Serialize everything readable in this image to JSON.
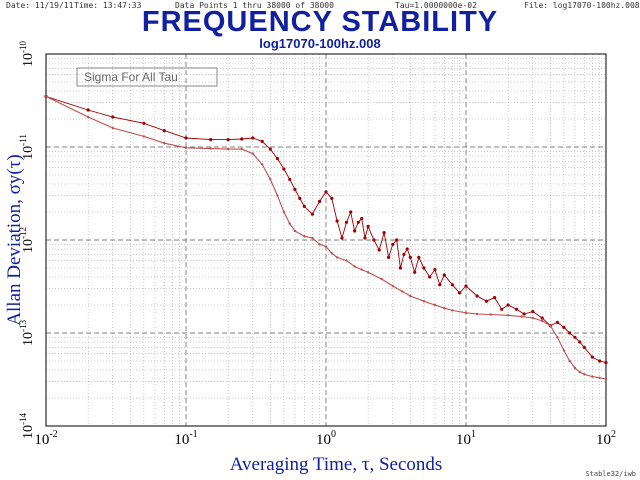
{
  "header": {
    "date_label": "Date: 11/19/11",
    "time_label": "Time: 13:47:33",
    "points_label": "Data Points 1 thru 38000 of 38000",
    "tau_label": "Tau=1.0000000e-02",
    "file_label": "File: log17070-100hz.008"
  },
  "footer": {
    "credit": "Stable32/iwb"
  },
  "colors": {
    "title": "#1020a0",
    "series_upper": "#a00000",
    "series_lower": "#c05050",
    "grid": "#9a9a9a"
  },
  "chart_data": {
    "type": "line",
    "title": "FREQUENCY STABILITY",
    "subtitle": "log17070-100hz.008",
    "xlabel": "Averaging Time, τ, Seconds",
    "ylabel": "Allan Deviation, σy(τ)",
    "x_scale": "log",
    "y_scale": "log",
    "xlim": [
      0.01,
      100
    ],
    "ylim": [
      1e-14,
      1e-10
    ],
    "grid": true,
    "annotation": "Sigma For All Tau",
    "x_ticks": [
      {
        "value": 0.01,
        "base": "10",
        "exp": "-2"
      },
      {
        "value": 0.1,
        "base": "10",
        "exp": "-1"
      },
      {
        "value": 1,
        "base": "10",
        "exp": "0"
      },
      {
        "value": 10,
        "base": "10",
        "exp": "1"
      },
      {
        "value": 100,
        "base": "10",
        "exp": "2"
      }
    ],
    "y_ticks": [
      {
        "value": 1e-14,
        "base": "10",
        "exp": "-14"
      },
      {
        "value": 1e-13,
        "base": "10",
        "exp": "-13"
      },
      {
        "value": 1e-12,
        "base": "10",
        "exp": "-12"
      },
      {
        "value": 1e-11,
        "base": "10",
        "exp": "-11"
      },
      {
        "value": 1e-10,
        "base": "10",
        "exp": "-10"
      }
    ],
    "series": [
      {
        "style": "dotted-markers",
        "x": [
          0.01,
          0.02,
          0.03,
          0.05,
          0.07,
          0.1,
          0.15,
          0.2,
          0.25,
          0.3,
          0.35,
          0.4,
          0.45,
          0.5,
          0.55,
          0.6,
          0.65,
          0.7,
          0.8,
          0.9,
          1,
          1.1,
          1.2,
          1.3,
          1.4,
          1.5,
          1.6,
          1.7,
          1.8,
          1.9,
          2,
          2.2,
          2.4,
          2.6,
          2.8,
          3,
          3.2,
          3.4,
          3.6,
          3.8,
          4,
          4.3,
          4.6,
          5,
          5.5,
          6,
          6.5,
          7,
          8,
          9,
          10,
          12,
          14,
          16,
          18,
          20,
          23,
          26,
          30,
          35,
          40,
          45,
          50,
          55,
          60,
          65,
          70,
          80,
          90,
          100
        ],
        "y": [
          3.5e-11,
          2.5e-11,
          2.1e-11,
          1.8e-11,
          1.5e-11,
          1.25e-11,
          1.2e-11,
          1.2e-11,
          1.22e-11,
          1.25e-11,
          1.15e-11,
          9.5e-12,
          7.5e-12,
          5.8e-12,
          4.5e-12,
          3.5e-12,
          2.8e-12,
          2.3e-12,
          1.9e-12,
          2.6e-12,
          3.3e-12,
          2.8e-12,
          1.6e-12,
          1.05e-12,
          1.55e-12,
          2e-12,
          1.25e-12,
          1.55e-12,
          1.7e-12,
          1.05e-12,
          1.4e-12,
          1e-12,
          7.8e-13,
          1.2e-12,
          6.5e-13,
          9e-13,
          1e-12,
          5e-13,
          7e-13,
          8e-13,
          6.5e-13,
          4.5e-13,
          6.5e-13,
          5e-13,
          4e-13,
          4.8e-13,
          3.3e-13,
          4.2e-13,
          3.3e-13,
          2.7e-13,
          3.2e-13,
          2.5e-13,
          2.2e-13,
          2.4e-13,
          1.8e-13,
          2e-13,
          1.8e-13,
          1.6e-13,
          1.7e-13,
          1.45e-13,
          1.2e-13,
          1.3e-13,
          1.15e-13,
          1e-13,
          9e-14,
          8e-14,
          7e-14,
          5.5e-14,
          5e-14,
          4.8e-14
        ]
      },
      {
        "style": "small-markers",
        "x": [
          0.01,
          0.02,
          0.03,
          0.05,
          0.07,
          0.1,
          0.15,
          0.2,
          0.25,
          0.3,
          0.35,
          0.4,
          0.45,
          0.5,
          0.55,
          0.6,
          0.7,
          0.8,
          0.9,
          1,
          1.1,
          1.2,
          1.4,
          1.6,
          1.8,
          2,
          2.5,
          3,
          3.5,
          4,
          5,
          6,
          7,
          8,
          10,
          12,
          15,
          20,
          25,
          30,
          35,
          40,
          45,
          50,
          55,
          60,
          65,
          70,
          80,
          90,
          100
        ],
        "y": [
          3.5e-11,
          2.1e-11,
          1.6e-11,
          1.3e-11,
          1.1e-11,
          9.8e-12,
          9.6e-12,
          9.5e-12,
          9.5e-12,
          8.5e-12,
          6.5e-12,
          4.5e-12,
          3e-12,
          2e-12,
          1.5e-12,
          1.25e-12,
          1.1e-12,
          1.05e-12,
          9e-13,
          8.5e-13,
          7.2e-13,
          6.5e-13,
          6e-13,
          5.2e-13,
          4.8e-13,
          4.5e-13,
          3.8e-13,
          3.2e-13,
          2.8e-13,
          2.5e-13,
          2.2e-13,
          2e-13,
          1.85e-13,
          1.75e-13,
          1.65e-13,
          1.6e-13,
          1.58e-13,
          1.55e-13,
          1.5e-13,
          1.45e-13,
          1.35e-13,
          1.2e-13,
          9e-14,
          6.5e-14,
          5e-14,
          4.2e-14,
          3.8e-14,
          3.6e-14,
          3.4e-14,
          3.3e-14,
          3.2e-14
        ]
      }
    ]
  }
}
